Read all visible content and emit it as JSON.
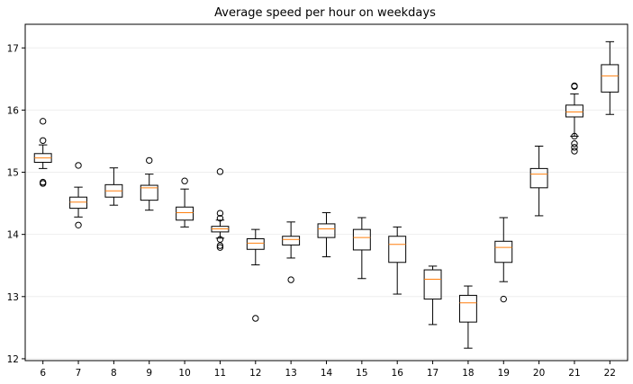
{
  "chart_data": {
    "type": "boxplot",
    "title": "Average speed per hour on weekdays",
    "xlabel": "",
    "ylabel": "",
    "categories": [
      "6",
      "7",
      "8",
      "9",
      "10",
      "11",
      "12",
      "13",
      "14",
      "15",
      "16",
      "17",
      "18",
      "19",
      "20",
      "21",
      "22"
    ],
    "ylim": [
      11.97,
      17.38
    ],
    "yticks": [
      12,
      13,
      14,
      15,
      16,
      17
    ],
    "grid": "horizontal",
    "colors": {
      "box": "#000000",
      "median": "#ff7f0e",
      "grid": "#eeeeee"
    },
    "boxes": [
      {
        "x": "6",
        "whislo": 15.06,
        "q1": 15.16,
        "med": 15.23,
        "q3": 15.3,
        "whishi": 15.44,
        "fliers": [
          15.82,
          15.51,
          14.84,
          14.82
        ]
      },
      {
        "x": "7",
        "whislo": 14.28,
        "q1": 14.42,
        "med": 14.52,
        "q3": 14.6,
        "whishi": 14.76,
        "fliers": [
          15.11,
          14.15
        ]
      },
      {
        "x": "8",
        "whislo": 14.47,
        "q1": 14.6,
        "med": 14.7,
        "q3": 14.8,
        "whishi": 15.07,
        "fliers": []
      },
      {
        "x": "9",
        "whislo": 14.39,
        "q1": 14.55,
        "med": 14.75,
        "q3": 14.79,
        "whishi": 14.97,
        "fliers": [
          15.19
        ]
      },
      {
        "x": "10",
        "whislo": 14.12,
        "q1": 14.23,
        "med": 14.35,
        "q3": 14.44,
        "whishi": 14.73,
        "fliers": [
          14.86
        ]
      },
      {
        "x": "11",
        "whislo": 13.94,
        "q1": 14.04,
        "med": 14.09,
        "q3": 14.13,
        "whishi": 14.23,
        "fliers": [
          15.01,
          14.34,
          14.26,
          13.92,
          13.82,
          13.79
        ]
      },
      {
        "x": "12",
        "whislo": 13.51,
        "q1": 13.76,
        "med": 13.86,
        "q3": 13.93,
        "whishi": 14.08,
        "fliers": [
          12.65
        ]
      },
      {
        "x": "13",
        "whislo": 13.62,
        "q1": 13.83,
        "med": 13.92,
        "q3": 13.97,
        "whishi": 14.2,
        "fliers": [
          13.27
        ]
      },
      {
        "x": "14",
        "whislo": 13.64,
        "q1": 13.95,
        "med": 14.09,
        "q3": 14.17,
        "whishi": 14.35,
        "fliers": []
      },
      {
        "x": "15",
        "whislo": 13.29,
        "q1": 13.75,
        "med": 13.95,
        "q3": 14.08,
        "whishi": 14.27,
        "fliers": []
      },
      {
        "x": "16",
        "whislo": 13.04,
        "q1": 13.55,
        "med": 13.84,
        "q3": 13.97,
        "whishi": 14.12,
        "fliers": []
      },
      {
        "x": "17",
        "whislo": 12.55,
        "q1": 12.96,
        "med": 13.28,
        "q3": 13.43,
        "whishi": 13.49,
        "fliers": []
      },
      {
        "x": "18",
        "whislo": 12.17,
        "q1": 12.59,
        "med": 12.9,
        "q3": 13.02,
        "whishi": 13.17,
        "fliers": []
      },
      {
        "x": "19",
        "whislo": 13.24,
        "q1": 13.55,
        "med": 13.79,
        "q3": 13.89,
        "whishi": 14.27,
        "fliers": [
          12.96
        ]
      },
      {
        "x": "20",
        "whislo": 14.3,
        "q1": 14.75,
        "med": 14.97,
        "q3": 15.06,
        "whishi": 15.42,
        "fliers": []
      },
      {
        "x": "21",
        "whislo": 15.58,
        "q1": 15.89,
        "med": 15.97,
        "q3": 16.08,
        "whishi": 16.26,
        "fliers": [
          16.39,
          16.38,
          15.58,
          15.46,
          15.4,
          15.34
        ]
      },
      {
        "x": "22",
        "whislo": 15.93,
        "q1": 16.29,
        "med": 16.55,
        "q3": 16.73,
        "whishi": 17.1,
        "fliers": []
      }
    ]
  }
}
